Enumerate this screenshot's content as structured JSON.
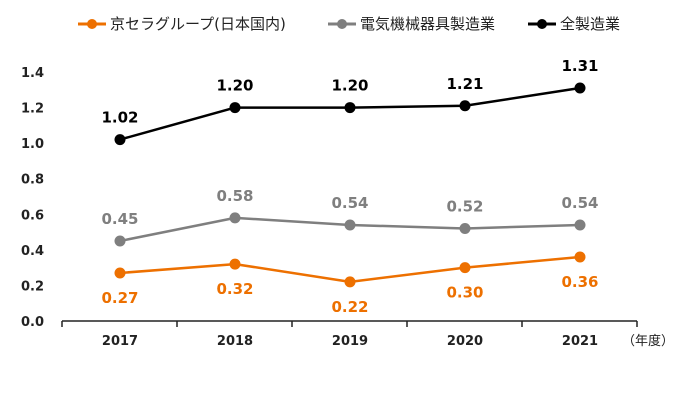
{
  "chart_data": {
    "type": "line",
    "title": "",
    "xlabel": "",
    "ylabel": "",
    "x_unit_label": "（年度）",
    "categories": [
      "2017",
      "2018",
      "2019",
      "2020",
      "2021"
    ],
    "ylim": [
      0.0,
      1.4
    ],
    "yticks": [
      "0.0",
      "0.2",
      "0.4",
      "0.6",
      "0.8",
      "1.0",
      "1.2",
      "1.4"
    ],
    "grid": false,
    "legend_position": "top",
    "series": [
      {
        "name": "京セラグループ(日本国内)",
        "color": "#ed7000",
        "values": [
          0.27,
          0.32,
          0.22,
          0.3,
          0.36
        ],
        "labels": [
          "0.27",
          "0.32",
          "0.22",
          "0.30",
          "0.36"
        ],
        "label_position": "below"
      },
      {
        "name": "電気機械器具製造業",
        "color": "#7f7f7f",
        "values": [
          0.45,
          0.58,
          0.54,
          0.52,
          0.54
        ],
        "labels": [
          "0.45",
          "0.58",
          "0.54",
          "0.52",
          "0.54"
        ],
        "label_position": "above"
      },
      {
        "name": "全製造業",
        "color": "#000000",
        "values": [
          1.02,
          1.2,
          1.2,
          1.21,
          1.31
        ],
        "labels": [
          "1.02",
          "1.20",
          "1.20",
          "1.21",
          "1.31"
        ],
        "label_position": "above"
      }
    ]
  }
}
